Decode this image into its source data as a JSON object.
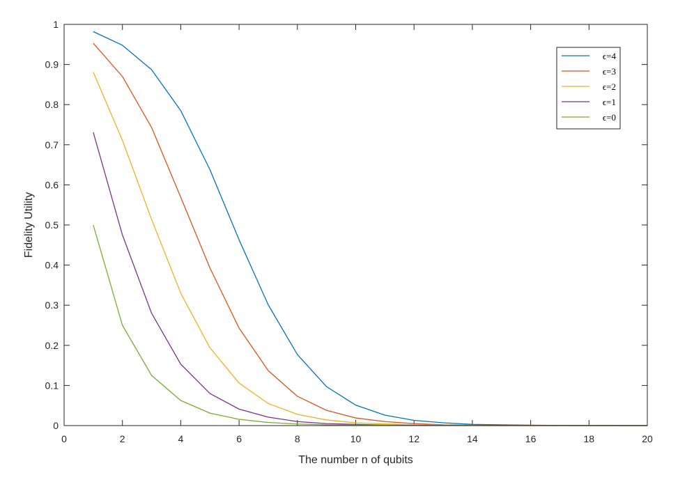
{
  "chart_data": {
    "type": "line",
    "xlabel": "The number n of qubits",
    "ylabel": "Fidelity Utility",
    "xlim": [
      0,
      20
    ],
    "ylim": [
      0,
      1
    ],
    "xticks": [
      0,
      2,
      4,
      6,
      8,
      10,
      12,
      14,
      16,
      18,
      20
    ],
    "yticks": [
      0,
      0.1,
      0.2,
      0.3,
      0.4,
      0.5,
      0.6,
      0.7,
      0.8,
      0.9,
      1
    ],
    "xtick_labels": [
      "0",
      "2",
      "4",
      "6",
      "8",
      "10",
      "12",
      "14",
      "16",
      "18",
      "20"
    ],
    "ytick_labels": [
      "0",
      "0.1",
      "0.2",
      "0.3",
      "0.4",
      "0.5",
      "0.6",
      "0.7",
      "0.8",
      "0.9",
      "1"
    ],
    "grid": false,
    "legend_position": "top-right",
    "x": [
      1,
      2,
      3,
      4,
      5,
      6,
      7,
      8,
      9,
      10,
      11,
      12,
      13,
      14,
      15,
      16,
      17,
      18,
      19,
      20
    ],
    "series": [
      {
        "name": "ϵ=4",
        "color": "#0072BD",
        "values": [
          0.982,
          0.948,
          0.887,
          0.785,
          0.638,
          0.463,
          0.301,
          0.177,
          0.097,
          0.051,
          0.026,
          0.013,
          0.007,
          0.003,
          0.002,
          0.001,
          0.0004,
          0.0002,
          0.0001,
          0.0001
        ]
      },
      {
        "name": "ϵ=3",
        "color": "#D95319",
        "values": [
          0.953,
          0.87,
          0.743,
          0.569,
          0.393,
          0.243,
          0.137,
          0.073,
          0.038,
          0.019,
          0.01,
          0.005,
          0.002,
          0.001,
          0.0006,
          0.0003,
          0.0002,
          0.0001,
          0.0,
          0.0
        ]
      },
      {
        "name": "ϵ=2",
        "color": "#EDB120",
        "values": [
          0.881,
          0.711,
          0.514,
          0.33,
          0.194,
          0.106,
          0.055,
          0.028,
          0.014,
          0.007,
          0.004,
          0.002,
          0.001,
          0.0004,
          0.0002,
          0.0001,
          0.0,
          0.0,
          0.0,
          0.0
        ]
      },
      {
        "name": "ϵ=1",
        "color": "#7E2F8E",
        "values": [
          0.731,
          0.475,
          0.28,
          0.153,
          0.08,
          0.041,
          0.021,
          0.01,
          0.005,
          0.003,
          0.001,
          0.0006,
          0.0003,
          0.0002,
          0.0001,
          0.0,
          0.0,
          0.0,
          0.0,
          0.0
        ]
      },
      {
        "name": "ϵ=0",
        "color": "#77AC30",
        "values": [
          0.5,
          0.25,
          0.125,
          0.0625,
          0.031,
          0.0156,
          0.0078,
          0.0039,
          0.002,
          0.001,
          0.0005,
          0.0002,
          0.0001,
          0.0001,
          0.0,
          0.0,
          0.0,
          0.0,
          0.0,
          0.0
        ]
      }
    ]
  }
}
